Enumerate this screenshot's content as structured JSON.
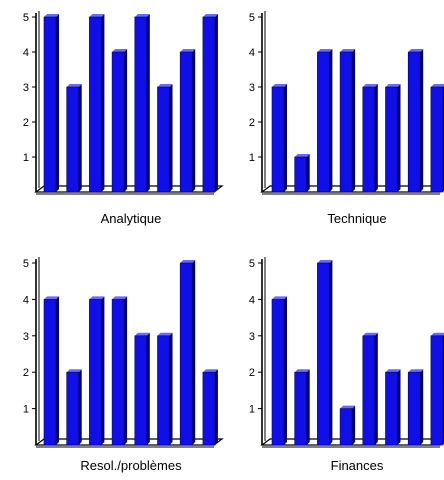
{
  "colors": {
    "bar_front": "#1010e6",
    "bar_side": "#000066",
    "bar_highlight": "#6a6aff",
    "axis": "#000000",
    "floor": "#ffffff"
  },
  "chart_data": [
    {
      "type": "bar",
      "title": "Analytique",
      "categories": [
        "",
        "",
        "",
        "",
        "",
        "",
        "",
        ""
      ],
      "values": [
        5,
        3,
        5,
        4,
        5,
        3,
        4,
        5
      ],
      "ylim": [
        0,
        5
      ],
      "yticks": [
        "1",
        "2",
        "3",
        "4",
        "5"
      ],
      "grid": false
    },
    {
      "type": "bar",
      "title": "Technique",
      "categories": [
        "",
        "",
        "",
        "",
        "",
        "",
        "",
        ""
      ],
      "values": [
        3,
        1,
        4,
        4,
        3,
        3,
        4,
        3
      ],
      "ylim": [
        0,
        5
      ],
      "yticks": [
        "1",
        "2",
        "3",
        "4",
        "5"
      ],
      "grid": false
    },
    {
      "type": "bar",
      "title": "Resol./problèmes",
      "categories": [
        "",
        "",
        "",
        "",
        "",
        "",
        "",
        ""
      ],
      "values": [
        4,
        2,
        4,
        4,
        3,
        3,
        5,
        2
      ],
      "ylim": [
        0,
        5
      ],
      "yticks": [
        "1",
        "2",
        "3",
        "4",
        "5"
      ],
      "grid": false
    },
    {
      "type": "bar",
      "title": "Finances",
      "categories": [
        "",
        "",
        "",
        "",
        "",
        "",
        "",
        ""
      ],
      "values": [
        4,
        2,
        5,
        1,
        3,
        2,
        2,
        3
      ],
      "ylim": [
        0,
        5
      ],
      "yticks": [
        "1",
        "2",
        "3",
        "4",
        "5"
      ],
      "grid": false
    }
  ]
}
